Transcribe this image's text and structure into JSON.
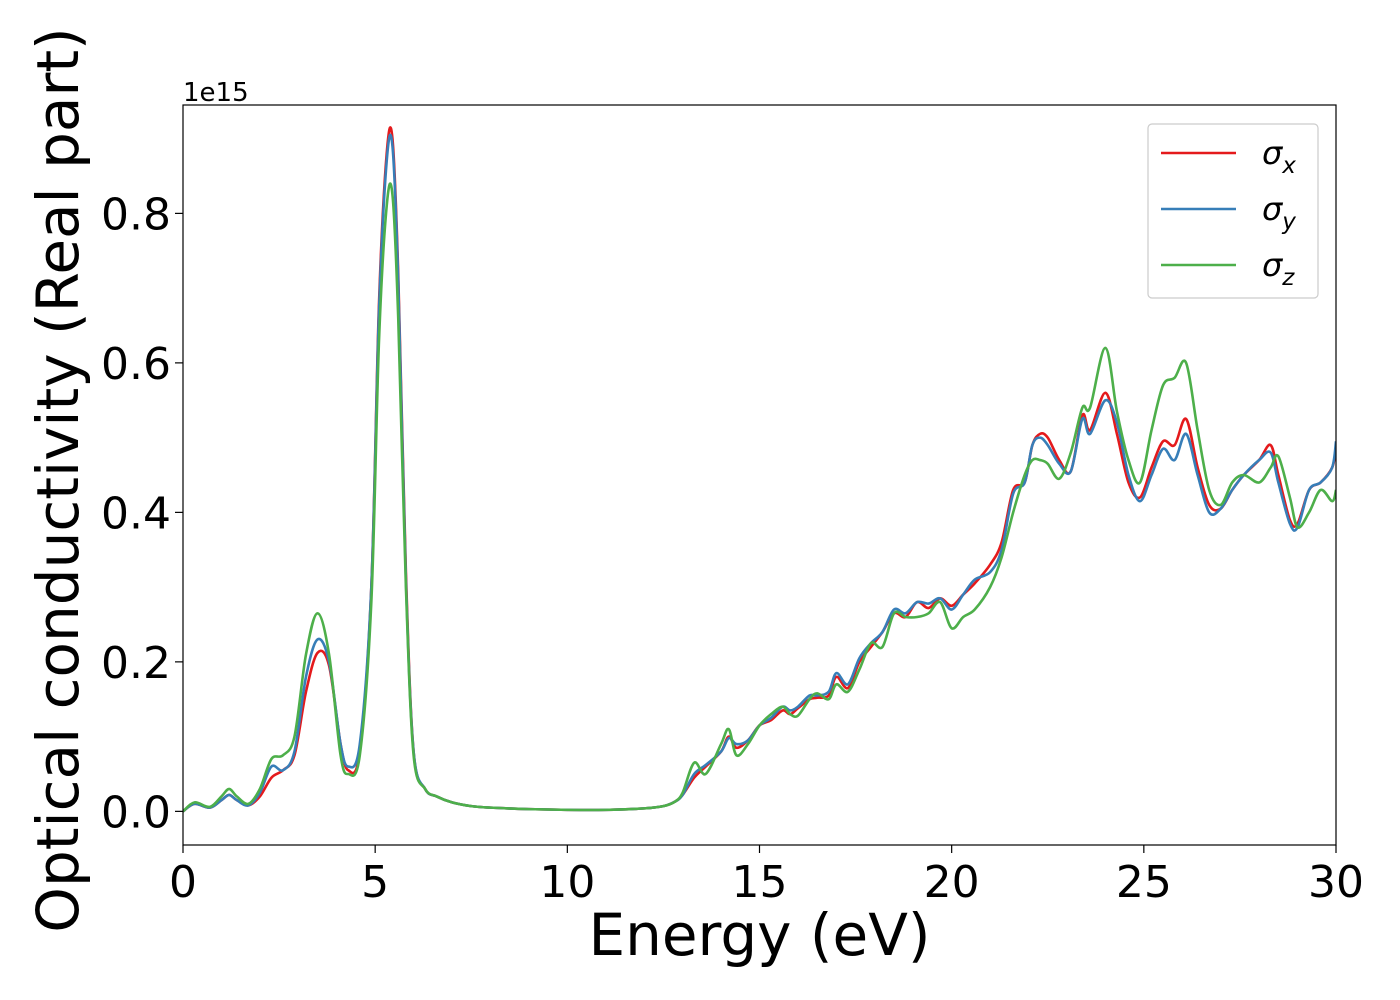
{
  "chart_data": {
    "type": "line",
    "xlabel": "Energy (eV)",
    "ylabel": "Optical conductivity (Real part)",
    "y_offset_text": "1e15",
    "xlim": [
      0,
      30
    ],
    "ylim": [
      -0.045,
      0.945
    ],
    "y_multiplier": 1000000000000000.0,
    "x_ticks": [
      0,
      5,
      10,
      15,
      20,
      25,
      30
    ],
    "y_ticks": [
      0.0,
      0.2,
      0.4,
      0.6,
      0.8
    ],
    "x_tick_labels": [
      "0",
      "5",
      "10",
      "15",
      "20",
      "25",
      "30"
    ],
    "y_tick_labels": [
      "0.0",
      "0.2",
      "0.4",
      "0.6",
      "0.8"
    ],
    "grid": false,
    "legend_position": "upper-right",
    "series": [
      {
        "name": "σ_x",
        "legend_base": "σ",
        "legend_sub": "x",
        "color": "#e41a1c",
        "x": [
          0,
          0.3,
          0.7,
          1.0,
          1.2,
          1.4,
          1.7,
          2.0,
          2.3,
          2.6,
          2.9,
          3.2,
          3.5,
          3.8,
          4.1,
          4.3,
          4.6,
          4.9,
          5.1,
          5.3,
          5.45,
          5.6,
          5.8,
          6.0,
          6.3,
          6.6,
          7.0,
          7.5,
          8,
          9,
          10,
          11,
          12,
          12.5,
          12.8,
          13.0,
          13.3,
          13.6,
          14.0,
          14.2,
          14.4,
          14.7,
          15.0,
          15.3,
          15.6,
          15.8,
          16.0,
          16.3,
          16.5,
          16.8,
          17.0,
          17.3,
          17.6,
          17.9,
          18.2,
          18.5,
          18.8,
          19.1,
          19.4,
          19.7,
          20.0,
          20.3,
          20.6,
          21.0,
          21.3,
          21.6,
          21.9,
          22.1,
          22.3,
          22.5,
          22.8,
          23.1,
          23.4,
          23.6,
          24.0,
          24.3,
          24.6,
          24.9,
          25.2,
          25.5,
          25.8,
          26.1,
          26.4,
          26.7,
          27.0,
          27.3,
          27.6,
          28.0,
          28.3,
          28.5,
          28.8,
          29.0,
          29.3,
          29.6,
          29.9,
          30.0
        ],
        "y": [
          0.0,
          0.01,
          0.005,
          0.015,
          0.022,
          0.015,
          0.008,
          0.02,
          0.045,
          0.055,
          0.075,
          0.16,
          0.212,
          0.195,
          0.09,
          0.055,
          0.08,
          0.3,
          0.68,
          0.88,
          0.9,
          0.72,
          0.32,
          0.08,
          0.03,
          0.02,
          0.012,
          0.007,
          0.005,
          0.003,
          0.002,
          0.002,
          0.004,
          0.007,
          0.013,
          0.022,
          0.045,
          0.06,
          0.08,
          0.1,
          0.085,
          0.095,
          0.115,
          0.122,
          0.135,
          0.13,
          0.138,
          0.15,
          0.152,
          0.155,
          0.18,
          0.165,
          0.2,
          0.22,
          0.24,
          0.265,
          0.26,
          0.28,
          0.272,
          0.285,
          0.275,
          0.29,
          0.305,
          0.33,
          0.36,
          0.43,
          0.44,
          0.49,
          0.505,
          0.5,
          0.47,
          0.455,
          0.53,
          0.51,
          0.56,
          0.505,
          0.44,
          0.42,
          0.46,
          0.495,
          0.49,
          0.525,
          0.46,
          0.41,
          0.405,
          0.43,
          0.45,
          0.47,
          0.49,
          0.45,
          0.39,
          0.385,
          0.43,
          0.44,
          0.46,
          0.485
        ]
      },
      {
        "name": "σ_y",
        "legend_base": "σ",
        "legend_sub": "y",
        "color": "#377eb8",
        "x": [
          0,
          0.3,
          0.7,
          1.0,
          1.2,
          1.4,
          1.7,
          2.0,
          2.3,
          2.6,
          2.9,
          3.2,
          3.5,
          3.8,
          4.1,
          4.3,
          4.6,
          4.9,
          5.1,
          5.3,
          5.45,
          5.6,
          5.8,
          6.0,
          6.3,
          6.6,
          7.0,
          7.5,
          8,
          9,
          10,
          11,
          12,
          12.5,
          12.8,
          13.0,
          13.3,
          13.6,
          14.0,
          14.2,
          14.4,
          14.7,
          15.0,
          15.3,
          15.6,
          15.8,
          16.0,
          16.3,
          16.5,
          16.8,
          17.0,
          17.3,
          17.6,
          17.9,
          18.2,
          18.5,
          18.8,
          19.1,
          19.4,
          19.7,
          20.0,
          20.3,
          20.6,
          21.0,
          21.3,
          21.6,
          21.9,
          22.1,
          22.3,
          22.5,
          22.8,
          23.1,
          23.4,
          23.6,
          24.0,
          24.3,
          24.6,
          24.9,
          25.2,
          25.5,
          25.8,
          26.1,
          26.4,
          26.7,
          27.0,
          27.3,
          27.6,
          28.0,
          28.3,
          28.5,
          28.8,
          29.0,
          29.3,
          29.6,
          29.9,
          30.0
        ],
        "y": [
          0.0,
          0.01,
          0.005,
          0.015,
          0.022,
          0.015,
          0.008,
          0.025,
          0.06,
          0.055,
          0.08,
          0.18,
          0.23,
          0.2,
          0.09,
          0.06,
          0.09,
          0.3,
          0.67,
          0.87,
          0.89,
          0.71,
          0.31,
          0.08,
          0.03,
          0.02,
          0.012,
          0.007,
          0.005,
          0.003,
          0.002,
          0.002,
          0.004,
          0.007,
          0.013,
          0.022,
          0.05,
          0.062,
          0.08,
          0.098,
          0.09,
          0.095,
          0.115,
          0.125,
          0.14,
          0.135,
          0.14,
          0.155,
          0.155,
          0.16,
          0.185,
          0.17,
          0.205,
          0.225,
          0.24,
          0.27,
          0.265,
          0.28,
          0.278,
          0.285,
          0.27,
          0.29,
          0.31,
          0.32,
          0.35,
          0.425,
          0.44,
          0.49,
          0.5,
          0.49,
          0.465,
          0.455,
          0.525,
          0.505,
          0.55,
          0.52,
          0.45,
          0.415,
          0.45,
          0.485,
          0.47,
          0.505,
          0.45,
          0.4,
          0.405,
          0.43,
          0.45,
          0.47,
          0.48,
          0.44,
          0.385,
          0.38,
          0.43,
          0.44,
          0.46,
          0.495
        ]
      },
      {
        "name": "σ_z",
        "legend_base": "σ",
        "legend_sub": "z",
        "color": "#4daf4a",
        "x": [
          0,
          0.3,
          0.7,
          1.0,
          1.2,
          1.4,
          1.7,
          2.0,
          2.3,
          2.6,
          2.9,
          3.2,
          3.5,
          3.8,
          4.1,
          4.3,
          4.6,
          4.9,
          5.1,
          5.3,
          5.45,
          5.6,
          5.8,
          6.0,
          6.3,
          6.6,
          7.0,
          7.5,
          8,
          9,
          10,
          11,
          12,
          12.5,
          12.8,
          13.0,
          13.3,
          13.6,
          14.0,
          14.2,
          14.4,
          14.7,
          15.0,
          15.3,
          15.6,
          15.8,
          16.0,
          16.3,
          16.5,
          16.8,
          17.0,
          17.3,
          17.6,
          17.9,
          18.2,
          18.5,
          18.8,
          19.1,
          19.4,
          19.7,
          20.0,
          20.3,
          20.6,
          21.0,
          21.3,
          21.6,
          21.9,
          22.1,
          22.3,
          22.5,
          22.8,
          23.1,
          23.4,
          23.6,
          24.0,
          24.3,
          24.6,
          24.9,
          25.2,
          25.5,
          25.8,
          26.1,
          26.4,
          26.7,
          27.0,
          27.3,
          27.6,
          28.0,
          28.3,
          28.5,
          28.8,
          29.0,
          29.3,
          29.6,
          29.9,
          30.0
        ],
        "y": [
          0.0,
          0.012,
          0.006,
          0.02,
          0.03,
          0.02,
          0.01,
          0.03,
          0.07,
          0.075,
          0.1,
          0.21,
          0.265,
          0.21,
          0.075,
          0.05,
          0.075,
          0.28,
          0.63,
          0.81,
          0.825,
          0.66,
          0.3,
          0.075,
          0.03,
          0.02,
          0.012,
          0.007,
          0.005,
          0.003,
          0.002,
          0.002,
          0.004,
          0.007,
          0.013,
          0.025,
          0.065,
          0.05,
          0.09,
          0.11,
          0.075,
          0.09,
          0.115,
          0.13,
          0.14,
          0.13,
          0.128,
          0.15,
          0.158,
          0.15,
          0.17,
          0.16,
          0.19,
          0.225,
          0.22,
          0.265,
          0.26,
          0.26,
          0.265,
          0.28,
          0.245,
          0.26,
          0.27,
          0.3,
          0.34,
          0.4,
          0.45,
          0.47,
          0.47,
          0.465,
          0.445,
          0.48,
          0.54,
          0.54,
          0.62,
          0.535,
          0.47,
          0.44,
          0.51,
          0.57,
          0.58,
          0.6,
          0.51,
          0.43,
          0.41,
          0.44,
          0.45,
          0.44,
          0.46,
          0.475,
          0.42,
          0.38,
          0.4,
          0.43,
          0.415,
          0.43
        ]
      }
    ]
  }
}
